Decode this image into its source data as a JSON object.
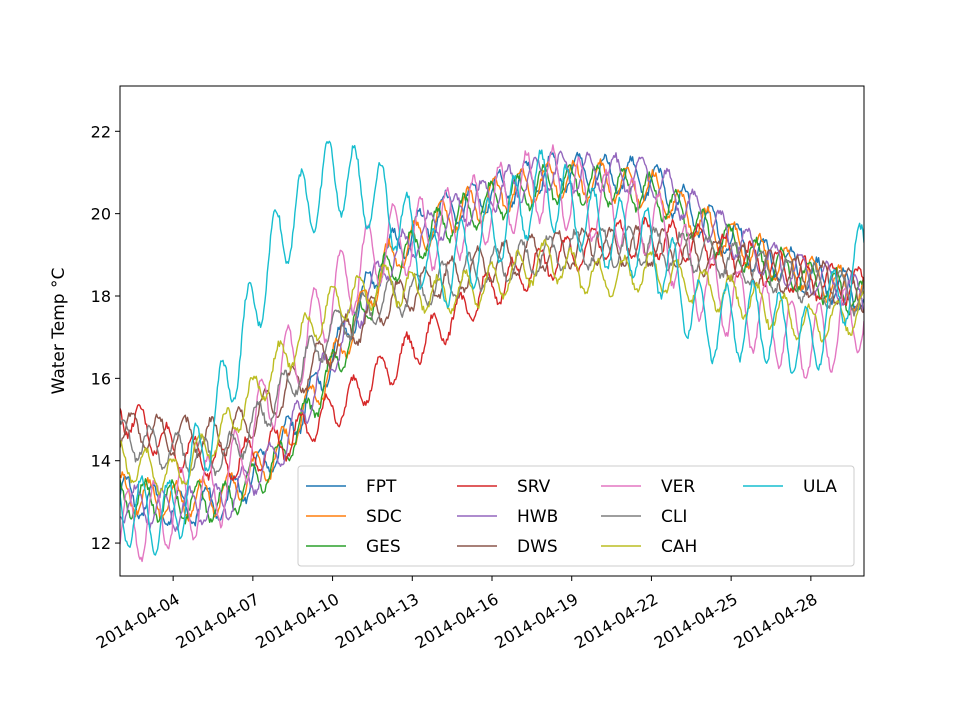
{
  "chart_data": {
    "type": "line",
    "ylabel": "Water Temp $^\\circ$C",
    "ylabel_display": "Water Temp °C",
    "x_axis": {
      "kind": "date",
      "range": [
        "2014-04-02",
        "2014-04-30"
      ],
      "tick_labels": [
        "2014-04-04",
        "2014-04-07",
        "2014-04-10",
        "2014-04-13",
        "2014-04-16",
        "2014-04-19",
        "2014-04-22",
        "2014-04-25",
        "2014-04-28"
      ]
    },
    "y_axis": {
      "range": [
        11.2,
        23.1
      ],
      "ticks": [
        12,
        14,
        16,
        18,
        20,
        22
      ],
      "tick_labels": [
        "12",
        "14",
        "16",
        "18",
        "20",
        "22"
      ]
    },
    "grid": false,
    "legend": {
      "placement": "lower-right",
      "columns": 4
    },
    "series": [
      {
        "name": "FPT",
        "color": "#1f77b4",
        "x": [
          "2014-04-02",
          "2014-04-04",
          "2014-04-06",
          "2014-04-08",
          "2014-04-10",
          "2014-04-12",
          "2014-04-14",
          "2014-04-16",
          "2014-04-18",
          "2014-04-20",
          "2014-04-22",
          "2014-04-24",
          "2014-04-26",
          "2014-04-28",
          "2014-04-30"
        ],
        "y": [
          13.2,
          12.8,
          13.0,
          14.3,
          16.5,
          19.0,
          20.0,
          20.5,
          21.0,
          21.0,
          20.8,
          19.8,
          19.0,
          18.5,
          18.0
        ]
      },
      {
        "name": "SDC",
        "color": "#ff7f0e",
        "x": [
          "2014-04-02",
          "2014-04-04",
          "2014-04-06",
          "2014-04-08",
          "2014-04-10",
          "2014-04-12",
          "2014-04-14",
          "2014-04-16",
          "2014-04-18",
          "2014-04-20",
          "2014-04-22",
          "2014-04-24",
          "2014-04-26",
          "2014-04-28",
          "2014-04-30"
        ],
        "y": [
          13.2,
          13.0,
          13.2,
          14.2,
          16.3,
          18.8,
          19.8,
          20.4,
          20.8,
          20.8,
          20.6,
          19.7,
          19.0,
          18.5,
          18.0
        ]
      },
      {
        "name": "GES",
        "color": "#2ca02c",
        "x": [
          "2014-04-02",
          "2014-04-04",
          "2014-04-06",
          "2014-04-08",
          "2014-04-10",
          "2014-04-12",
          "2014-04-14",
          "2014-04-16",
          "2014-04-18",
          "2014-04-20",
          "2014-04-22",
          "2014-04-24",
          "2014-04-26",
          "2014-04-28",
          "2014-04-30"
        ],
        "y": [
          13.1,
          13.0,
          13.0,
          14.0,
          16.2,
          18.6,
          19.7,
          20.3,
          20.7,
          20.7,
          20.5,
          19.6,
          18.9,
          18.4,
          17.9
        ]
      },
      {
        "name": "SRV",
        "color": "#d62728",
        "x": [
          "2014-04-02",
          "2014-04-04",
          "2014-04-06",
          "2014-04-08",
          "2014-04-10",
          "2014-04-12",
          "2014-04-14",
          "2014-04-16",
          "2014-04-18",
          "2014-04-20",
          "2014-04-22",
          "2014-04-24",
          "2014-04-26",
          "2014-04-28",
          "2014-04-30"
        ],
        "y": [
          15.2,
          14.3,
          13.9,
          14.4,
          15.2,
          16.2,
          17.2,
          18.2,
          18.8,
          19.3,
          19.4,
          19.2,
          18.8,
          18.4,
          18.2
        ]
      },
      {
        "name": "HWB",
        "color": "#9467bd",
        "x": [
          "2014-04-02",
          "2014-04-04",
          "2014-04-06",
          "2014-04-08",
          "2014-04-10",
          "2014-04-12",
          "2014-04-14",
          "2014-04-16",
          "2014-04-18",
          "2014-04-20",
          "2014-04-22",
          "2014-04-24",
          "2014-04-26",
          "2014-04-28",
          "2014-04-30"
        ],
        "y": [
          13.0,
          12.8,
          13.0,
          14.2,
          16.5,
          18.8,
          19.8,
          20.5,
          21.0,
          21.0,
          20.9,
          19.9,
          19.0,
          18.5,
          18.0
        ]
      },
      {
        "name": "DWS",
        "color": "#8c564b",
        "x": [
          "2014-04-02",
          "2014-04-04",
          "2014-04-06",
          "2014-04-08",
          "2014-04-10",
          "2014-04-12",
          "2014-04-14",
          "2014-04-16",
          "2014-04-18",
          "2014-04-20",
          "2014-04-22",
          "2014-04-24",
          "2014-04-26",
          "2014-04-28",
          "2014-04-30"
        ],
        "y": [
          14.8,
          14.6,
          14.6,
          15.5,
          16.8,
          17.8,
          18.4,
          18.8,
          19.1,
          19.2,
          19.2,
          19.0,
          18.7,
          18.4,
          18.1
        ]
      },
      {
        "name": "VER",
        "color": "#e377c2",
        "x": [
          "2014-04-02",
          "2014-04-04",
          "2014-04-06",
          "2014-04-08",
          "2014-04-10",
          "2014-04-12",
          "2014-04-14",
          "2014-04-16",
          "2014-04-18",
          "2014-04-20",
          "2014-04-22",
          "2014-04-24",
          "2014-04-26",
          "2014-04-28",
          "2014-04-30"
        ],
        "y": [
          12.3,
          12.8,
          13.4,
          16.0,
          18.0,
          19.3,
          19.6,
          20.2,
          20.8,
          20.2,
          19.8,
          18.2,
          17.5,
          16.8,
          17.6
        ]
      },
      {
        "name": "CLI",
        "color": "#7f7f7f",
        "x": [
          "2014-04-02",
          "2014-04-04",
          "2014-04-06",
          "2014-04-08",
          "2014-04-10",
          "2014-04-12",
          "2014-04-14",
          "2014-04-16",
          "2014-04-18",
          "2014-04-20",
          "2014-04-22",
          "2014-04-24",
          "2014-04-26",
          "2014-04-28",
          "2014-04-30"
        ],
        "y": [
          14.6,
          14.2,
          14.1,
          15.6,
          17.2,
          17.9,
          18.3,
          18.7,
          19.0,
          19.2,
          19.2,
          19.0,
          18.7,
          18.3,
          18.0
        ]
      },
      {
        "name": "CAH",
        "color": "#bcbd22",
        "x": [
          "2014-04-02",
          "2014-04-04",
          "2014-04-06",
          "2014-04-08",
          "2014-04-10",
          "2014-04-12",
          "2014-04-14",
          "2014-04-16",
          "2014-04-18",
          "2014-04-20",
          "2014-04-22",
          "2014-04-24",
          "2014-04-26",
          "2014-04-28",
          "2014-04-30"
        ],
        "y": [
          14.0,
          13.6,
          14.8,
          16.4,
          17.8,
          18.3,
          18.0,
          18.3,
          18.9,
          18.4,
          18.6,
          18.2,
          17.8,
          17.3,
          17.6
        ]
      },
      {
        "name": "ULA",
        "color": "#17becf",
        "x": [
          "2014-04-02",
          "2014-04-04",
          "2014-04-06",
          "2014-04-08",
          "2014-04-10",
          "2014-04-12",
          "2014-04-14",
          "2014-04-16",
          "2014-04-18",
          "2014-04-20",
          "2014-04-22",
          "2014-04-24",
          "2014-04-26",
          "2014-04-28",
          "2014-04-30"
        ],
        "y": [
          12.8,
          12.6,
          15.8,
          19.5,
          21.0,
          20.3,
          18.5,
          19.5,
          20.7,
          19.6,
          19.2,
          17.3,
          17.4,
          16.8,
          19.0
        ]
      }
    ]
  }
}
